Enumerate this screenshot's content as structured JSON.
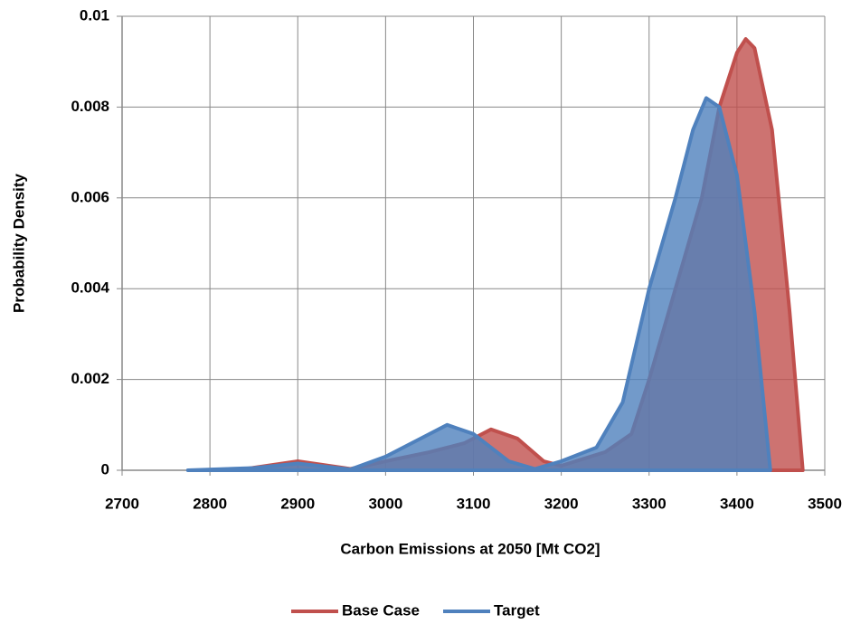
{
  "chart_data": {
    "type": "area",
    "xlabel": "Carbon Emissions at 2050 [Mt CO2]",
    "ylabel": "Probability Density",
    "xlim": [
      2700,
      3500
    ],
    "xticks": [
      2700,
      2800,
      2900,
      3000,
      3100,
      3200,
      3300,
      3400,
      3500
    ],
    "ylim": [
      0,
      0.01
    ],
    "yticks": [
      0,
      0.002,
      0.004,
      0.006,
      0.008,
      0.01
    ],
    "grid": true,
    "legend": "bottom",
    "series": [
      {
        "name": "Base Case",
        "color": "#c0504d",
        "x": [
          2830,
          2900,
          2960,
          3000,
          3050,
          3090,
          3120,
          3150,
          3180,
          3200,
          3250,
          3280,
          3300,
          3330,
          3360,
          3380,
          3400,
          3410,
          3420,
          3440,
          3460,
          3475
        ],
        "values": [
          0,
          0.0002,
          3e-05,
          0.0002,
          0.0004,
          0.0006,
          0.0009,
          0.0007,
          0.0002,
          0.0001,
          0.0004,
          0.0008,
          0.002,
          0.004,
          0.006,
          0.008,
          0.0092,
          0.0095,
          0.0093,
          0.0075,
          0.0035,
          0
        ]
      },
      {
        "name": "Target",
        "color": "#4f81bd",
        "x": [
          2775,
          2850,
          2900,
          2960,
          3000,
          3040,
          3070,
          3100,
          3140,
          3170,
          3200,
          3240,
          3270,
          3300,
          3330,
          3350,
          3365,
          3380,
          3400,
          3420,
          3438
        ],
        "values": [
          0,
          5e-05,
          0.00015,
          2e-05,
          0.0003,
          0.0007,
          0.001,
          0.0008,
          0.0002,
          3e-05,
          0.0002,
          0.0005,
          0.0015,
          0.004,
          0.006,
          0.0075,
          0.0082,
          0.008,
          0.0065,
          0.0035,
          0
        ]
      }
    ]
  }
}
